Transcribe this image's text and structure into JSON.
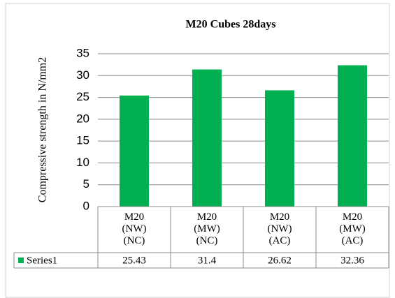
{
  "chart_data": {
    "type": "bar",
    "title": "M20 Cubes 28days",
    "y_label": "Compressive strength in N/mm2",
    "categories": [
      "M20 (NW) (NC)",
      "M20 (MW) (NC)",
      "M20 (NW) (AC)",
      "M20 (MW) (AC)"
    ],
    "series": [
      {
        "name": "Series1",
        "color": "#00b050",
        "values": [
          25.43,
          31.4,
          26.62,
          32.36
        ]
      }
    ],
    "ylim": [
      0,
      35
    ],
    "yticks": [
      0,
      5,
      10,
      15,
      20,
      25,
      30,
      35
    ],
    "grid": true,
    "data_table": true
  }
}
